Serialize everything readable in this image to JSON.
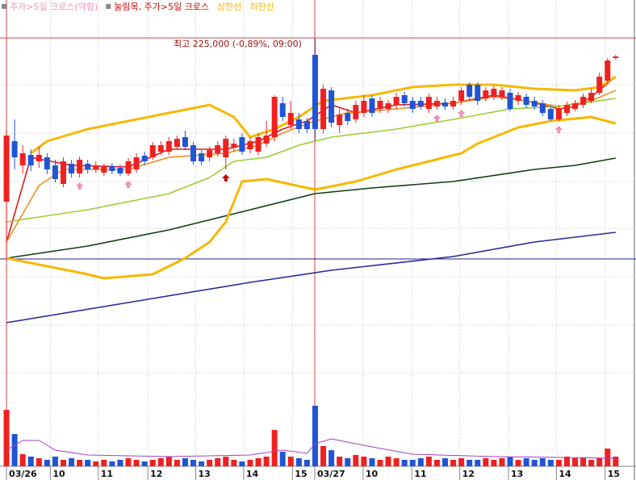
{
  "chart_data": {
    "type": "candlestick",
    "annotation": "최고 225,000 (-0,89%, 09:00)",
    "up_color": "#f02020",
    "down_color": "#1f55d6",
    "grid": true,
    "xlim": [
      -0.8,
      77.5
    ],
    "ylim": [
      180700,
      229700
    ],
    "vlim": [
      0,
      80
    ],
    "xticks": [
      {
        "value": 0,
        "label": "03/26"
      },
      {
        "value": 5.4,
        "label": "10"
      },
      {
        "value": 11.3,
        "label": "11"
      },
      {
        "value": 17.4,
        "label": "12"
      },
      {
        "value": 23.3,
        "label": "13"
      },
      {
        "value": 29.2,
        "label": "14"
      },
      {
        "value": 35.2,
        "label": "15"
      },
      {
        "value": 37.95,
        "label": "03/27"
      },
      {
        "value": 43.9,
        "label": "10"
      },
      {
        "value": 49.9,
        "label": "11"
      },
      {
        "value": 55.8,
        "label": "12"
      },
      {
        "value": 61.8,
        "label": "13"
      },
      {
        "value": 67.7,
        "label": "14"
      },
      {
        "value": 73.7,
        "label": "15"
      }
    ],
    "ygrid": [
      219200,
      213200,
      207200,
      201400,
      195400,
      189400,
      183500
    ],
    "day_lines": [
      0,
      37.95
    ],
    "day_line_color": "#d04848",
    "hlines": [
      {
        "value": 225000,
        "color": "#d04848"
      },
      {
        "value": 197600,
        "color": "#22228a"
      }
    ],
    "open": [
      204700,
      212200,
      209200,
      210500,
      209700,
      210200,
      209200,
      206900,
      209400,
      208200,
      209400,
      208700,
      208300,
      209100,
      208900,
      208200,
      208700,
      210400,
      210200,
      210900,
      210900,
      211500,
      212700,
      211700,
      210700,
      210200,
      210700,
      210200,
      211400,
      212700,
      211200,
      210900,
      211900,
      212700,
      216900,
      214200,
      214900,
      214700,
      222900,
      213700,
      218500,
      214200,
      215700,
      214900,
      215700,
      217500,
      216200,
      216200,
      216700,
      217900,
      217200,
      217200,
      216200,
      216500,
      217000,
      216500,
      217200,
      219200,
      219200,
      217500,
      217700,
      217700,
      218200,
      217200,
      217700,
      217200,
      216900,
      216200,
      214900,
      215700,
      216200,
      216700,
      217200,
      218200,
      219700,
      222500
    ],
    "high": [
      213700,
      214900,
      211700,
      211200,
      211500,
      210700,
      209900,
      210200,
      209900,
      210300,
      209900,
      209700,
      209400,
      209500,
      209300,
      210100,
      210700,
      210900,
      212100,
      212200,
      212700,
      212900,
      213500,
      212100,
      211100,
      211500,
      212200,
      212900,
      212500,
      213200,
      212700,
      213200,
      214700,
      217900,
      217700,
      217200,
      215700,
      215100,
      225000,
      219200,
      218900,
      216200,
      216200,
      217200,
      217900,
      217900,
      217700,
      217300,
      218200,
      218300,
      217700,
      217700,
      218100,
      217700,
      217500,
      217700,
      218900,
      219500,
      219500,
      218900,
      219100,
      218900,
      218700,
      218300,
      218100,
      217700,
      217300,
      216700,
      216700,
      217100,
      217300,
      218100,
      218700,
      220700,
      222500,
      222900
    ],
    "low": [
      197500,
      208700,
      208200,
      208500,
      208900,
      208100,
      207100,
      206500,
      207700,
      207700,
      208200,
      208300,
      207900,
      208100,
      207900,
      207900,
      208300,
      209200,
      209900,
      210500,
      210500,
      211100,
      211100,
      209300,
      209200,
      209700,
      210300,
      208700,
      210900,
      210500,
      210700,
      210500,
      211500,
      212200,
      214700,
      213700,
      213200,
      213200,
      212200,
      213200,
      213900,
      213200,
      214200,
      214500,
      215200,
      215200,
      215700,
      215700,
      216200,
      216500,
      215700,
      216100,
      215700,
      216100,
      216100,
      216100,
      216700,
      217300,
      216700,
      217100,
      217300,
      217300,
      215900,
      216700,
      216300,
      216100,
      215300,
      214700,
      214700,
      215300,
      215900,
      216300,
      216900,
      217900,
      219300,
      222300
    ],
    "close": [
      212900,
      210200,
      210700,
      209200,
      210500,
      208700,
      207500,
      209700,
      208200,
      209900,
      208700,
      209200,
      209000,
      208500,
      208200,
      209700,
      210200,
      209700,
      211700,
      211700,
      212200,
      212500,
      211500,
      209700,
      209700,
      211100,
      211700,
      212500,
      211900,
      210900,
      212200,
      212700,
      212900,
      217700,
      215200,
      215700,
      213700,
      213700,
      213700,
      218700,
      214500,
      215500,
      214700,
      216700,
      217200,
      215700,
      217200,
      216900,
      217700,
      216900,
      216200,
      216500,
      217700,
      217200,
      216500,
      217200,
      218500,
      217700,
      217200,
      218500,
      218700,
      218500,
      216200,
      217900,
      216700,
      216500,
      215700,
      214900,
      216200,
      216700,
      216900,
      217700,
      218200,
      220200,
      222200,
      222700
    ],
    "volume": [
      70,
      40,
      15,
      12,
      10,
      8,
      12,
      8,
      10,
      8,
      8,
      6,
      8,
      6,
      8,
      10,
      8,
      6,
      8,
      10,
      12,
      8,
      10,
      8,
      6,
      8,
      10,
      12,
      8,
      6,
      8,
      10,
      12,
      45,
      18,
      12,
      10,
      8,
      75,
      25,
      20,
      12,
      10,
      14,
      12,
      10,
      8,
      12,
      10,
      8,
      8,
      10,
      12,
      8,
      10,
      8,
      10,
      8,
      8,
      10,
      8,
      10,
      12,
      8,
      10,
      8,
      10,
      8,
      8,
      12,
      10,
      10,
      8,
      10,
      22,
      12
    ],
    "volume_ma": {
      "color": "#a040c0",
      "x": [
        0,
        2,
        4,
        6,
        10,
        20,
        30,
        34,
        37,
        38,
        40,
        45,
        50,
        60,
        75
      ],
      "values": [
        20,
        32,
        32,
        20,
        14,
        12,
        14,
        20,
        16,
        28,
        34,
        24,
        15,
        12,
        10
      ]
    },
    "overlays": [
      {
        "color": "#e01818",
        "x": [
          0,
          3,
          8,
          15,
          20,
          27,
          31,
          34,
          37,
          40,
          43,
          48,
          55,
          60,
          64,
          68,
          70,
          72,
          75
        ],
        "values": [
          199700,
          210200,
          209200,
          209000,
          211200,
          211200,
          212200,
          213700,
          214700,
          216700,
          215700,
          216700,
          216900,
          217900,
          217200,
          216200,
          216500,
          217700,
          220200
        ]
      },
      {
        "color": "#f08c20",
        "x": [
          0,
          4,
          7,
          15,
          20,
          27,
          31,
          34,
          38,
          42,
          48,
          55,
          60,
          64,
          68,
          72,
          75
        ],
        "values": [
          199700,
          206700,
          208700,
          208700,
          210200,
          210700,
          211700,
          213200,
          214700,
          215700,
          216200,
          216900,
          217700,
          217200,
          216500,
          217200,
          218500
        ]
      },
      {
        "color": "#9acd32",
        "x": [
          0,
          10,
          20,
          25,
          28,
          32,
          36,
          40,
          48,
          55,
          62,
          68,
          75
        ],
        "values": [
          202200,
          203700,
          205700,
          207700,
          209700,
          210200,
          211700,
          212700,
          213700,
          214900,
          216200,
          216500,
          217500
        ]
      },
      {
        "color": "#0f3d0f",
        "x": [
          0,
          10,
          20,
          30,
          38,
          45,
          55,
          65,
          70,
          75
        ],
        "values": [
          197700,
          199200,
          201200,
          203700,
          205700,
          206400,
          207200,
          208700,
          209200,
          210100
        ]
      },
      {
        "color": "#2a2a9a",
        "x": [
          0,
          15,
          30,
          40,
          55,
          65,
          75
        ],
        "values": [
          189700,
          192200,
          194700,
          196200,
          197900,
          199700,
          200900
        ]
      },
      {
        "name": "상한선",
        "color": "#f5b800",
        "x": [
          3,
          5,
          10,
          20,
          25,
          28,
          30,
          33,
          36,
          39,
          45,
          50,
          55,
          60,
          65,
          70,
          73,
          75
        ],
        "values": [
          210700,
          212200,
          213700,
          215700,
          216700,
          215200,
          212700,
          213700,
          215200,
          217200,
          217900,
          218900,
          219200,
          219200,
          218700,
          218500,
          218900,
          220200
        ]
      },
      {
        "name": "하한선",
        "color": "#f5b800",
        "x": [
          0,
          5,
          10,
          12,
          18,
          22,
          25,
          27,
          28,
          29,
          32,
          38,
          43,
          48,
          52,
          56,
          58,
          60,
          63,
          67,
          72,
          75
        ],
        "values": [
          197700,
          196700,
          195700,
          195200,
          195700,
          197700,
          199700,
          202200,
          204700,
          207200,
          207500,
          206200,
          207200,
          208700,
          209700,
          210700,
          211900,
          212700,
          213900,
          214700,
          215200,
          214400
        ]
      }
    ],
    "signals": [
      {
        "name": "주가>5일 크로스(약함)",
        "color": "#f090b8",
        "x": [
          9,
          15,
          53,
          56,
          68
        ]
      },
      {
        "name": "눌림목, 주가>5일 크로스",
        "color": "#c01010",
        "x": [
          27
        ]
      }
    ]
  }
}
